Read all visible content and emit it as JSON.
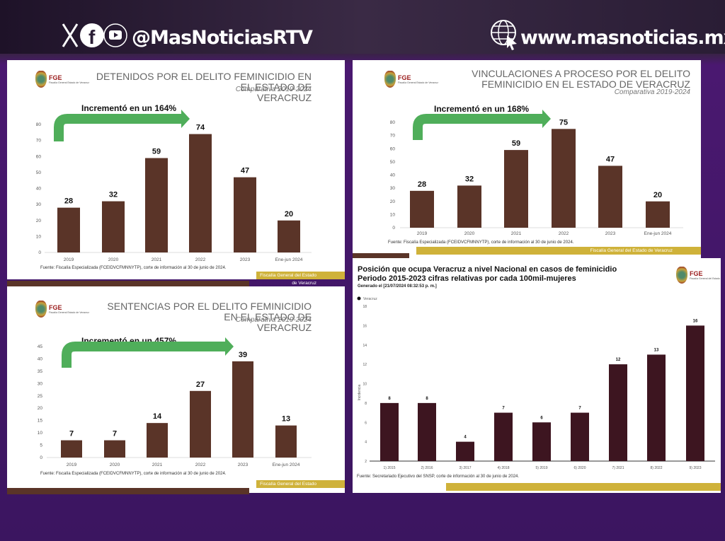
{
  "header": {
    "social_handle": "@MasNoticiasRTV",
    "website": "www.masnoticias.mx",
    "icons": [
      "x-icon",
      "facebook-icon",
      "youtube-icon",
      "globe-cursor-icon"
    ]
  },
  "panels": [
    {
      "logo": "FGE",
      "logo_sub": "Fiscalía General Estado de Veracruz",
      "title_l1": "DETENIDOS POR EL DELITO FEMINICIDIO EN EL ESTADO DE",
      "title_l2": "VERACRUZ",
      "subtitle": "Comparativa 2019-2024",
      "increment": "Incrementó en un 164%",
      "source": "Fuente: Fiscalía Especializada (FCEIDVCFMNNYTP), corte de información al 30 de junio de 2024.",
      "footer": "Fiscalía General del Estado de Veracruz"
    },
    {
      "logo": "FGE",
      "logo_sub": "Fiscalía General Estado de Veracruz",
      "title_l1": "SENTENCIAS POR EL DELITO FEMINICIDIO EN EL ESTADO DE",
      "title_l2": "VERACRUZ",
      "subtitle": "Comparativa 2019-2024",
      "increment": "Incrementó en un 457%",
      "source": "Fuente: Fiscalía Especializada (FCEIDVCFMNNYTP), corte de información al 30 de junio de 2024.",
      "footer": "Fiscalía General del Estado de Veracruz"
    },
    {
      "logo": "FGE",
      "logo_sub": "Fiscalía General Estado de Veracruz",
      "title_l1": "VINCULACIONES A PROCESO POR EL DELITO",
      "title_l2": "FEMINICIDIO EN EL ESTADO DE VERACRUZ",
      "subtitle": "Comparativa 2019-2024",
      "increment": "Incrementó en un 168%",
      "source": "Fuente: Fiscalía Especializada (FCEIDVCFMNNYTP), corte de información al 30 de junio de 2024.",
      "footer": "Fiscalía General del Estado de Veracruz"
    },
    {
      "logo": "FGE",
      "logo_sub": "Fiscalía General del Estado",
      "title_l1": "Posición que ocupa Veracruz a nivel Nacional en casos de feminicidio",
      "title_l2": "Periodo 2015-2023 cifras relativas por cada 100mil-mujeres",
      "generated": "Generado el [21/07/2024 08:32:53 p. m.]",
      "source": "Fuente: Secretariado Ejecutivo del SNSP, corte de información al 30 de junio de 2024."
    }
  ],
  "chart_data": [
    {
      "type": "bar",
      "categories": [
        "2019",
        "2020",
        "2021",
        "2022",
        "2023",
        "Ene-jun 2024"
      ],
      "values": [
        28,
        32,
        59,
        74,
        47,
        20
      ],
      "ylim": [
        0,
        80
      ],
      "yticks": [
        0,
        10,
        20,
        30,
        40,
        50,
        60,
        70,
        80
      ],
      "color": "#5a3428",
      "data_labels": true
    },
    {
      "type": "bar",
      "categories": [
        "2019",
        "2020",
        "2021",
        "2022",
        "2023",
        "Ene-jun 2024"
      ],
      "values": [
        7,
        7,
        14,
        27,
        39,
        13
      ],
      "ylim": [
        0,
        45
      ],
      "yticks": [
        0,
        5,
        10,
        15,
        20,
        25,
        30,
        35,
        40,
        45
      ],
      "color": "#5a3428",
      "data_labels": true
    },
    {
      "type": "bar",
      "categories": [
        "2019",
        "2020",
        "2021",
        "2022",
        "2023",
        "Ene-jun 2024"
      ],
      "values": [
        28,
        32,
        59,
        75,
        47,
        20
      ],
      "ylim": [
        0,
        80
      ],
      "yticks": [
        0,
        10,
        20,
        30,
        40,
        50,
        60,
        70,
        80
      ],
      "color": "#5a3428",
      "data_labels": true
    },
    {
      "type": "bar",
      "categories": [
        "1) 2015",
        "2) 2016",
        "3) 2017",
        "4) 2018",
        "5) 2019",
        "6) 2020",
        "7) 2021",
        "8) 2022",
        "9) 2023"
      ],
      "series": [
        {
          "name": "Veracruz",
          "values": [
            8,
            8,
            4,
            7,
            6,
            7,
            12,
            13,
            16
          ]
        }
      ],
      "ylim": [
        2,
        18
      ],
      "yticks": [
        2,
        4,
        6,
        8,
        10,
        12,
        14,
        16,
        18
      ],
      "ylabel": "Incidencia",
      "color": "#3d1520",
      "data_labels": true,
      "legend": "top-left"
    }
  ]
}
